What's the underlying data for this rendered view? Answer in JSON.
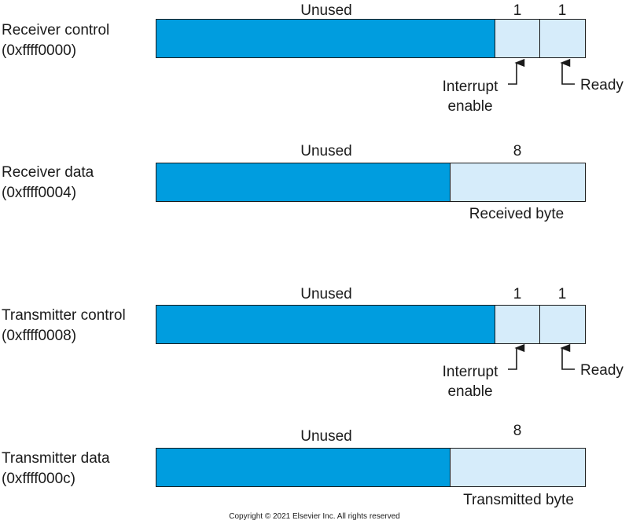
{
  "registers": [
    {
      "name": "Receiver control",
      "address": "(0xffff0000)",
      "unused_label": "Unused",
      "bit_widths": [
        "1",
        "1"
      ],
      "captions": {
        "interrupt": "Interrupt\nenable",
        "ready": "Ready"
      }
    },
    {
      "name": "Receiver data",
      "address": "(0xffff0004)",
      "unused_label": "Unused",
      "byte_width": "8",
      "byte_caption": "Received byte"
    },
    {
      "name": "Transmitter control",
      "address": "(0xffff0008)",
      "unused_label": "Unused",
      "bit_widths": [
        "1",
        "1"
      ],
      "captions": {
        "interrupt": "Interrupt\nenable",
        "ready": "Ready"
      }
    },
    {
      "name": "Transmitter data",
      "address": "(0xffff000c)",
      "unused_label": "Unused",
      "byte_width": "8",
      "byte_caption": "Transmitted byte"
    }
  ],
  "copyright": "Copyright © 2021 Elsevier Inc. All rights reserved",
  "colors": {
    "unused_field": "#009ddf",
    "used_field": "#d6ecfa",
    "outline": "#1a1a1a"
  }
}
